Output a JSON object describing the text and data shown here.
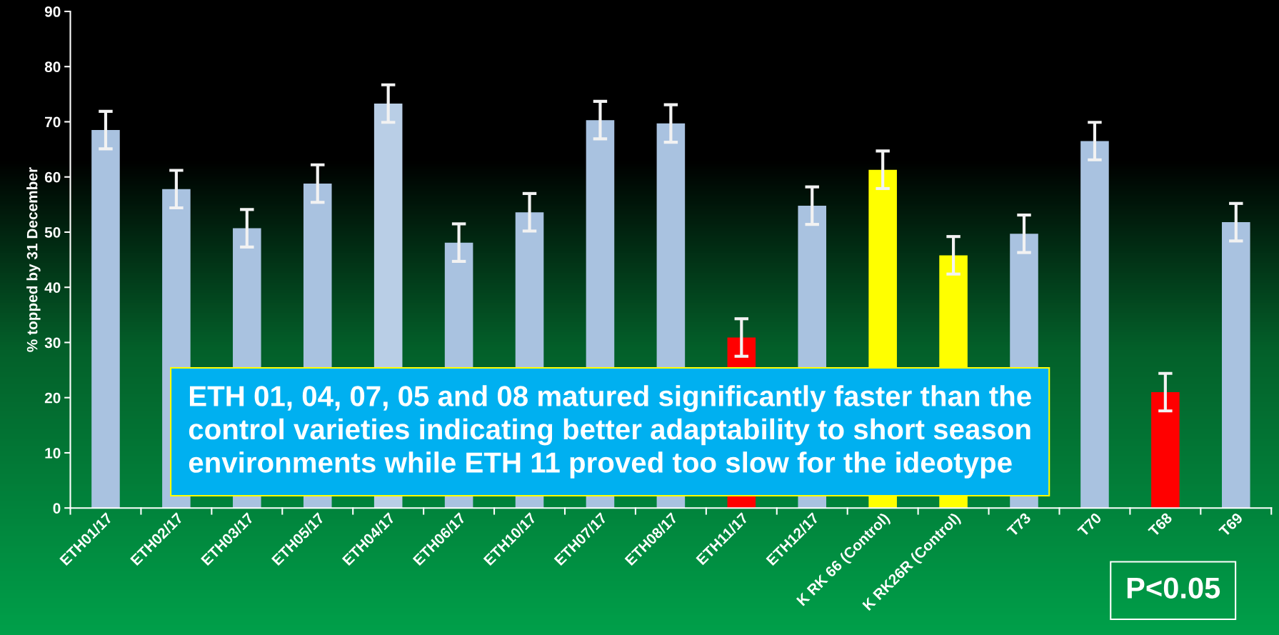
{
  "chart_data": {
    "type": "bar",
    "categories": [
      "ETH01/17",
      "ETH02/17",
      "ETH03/17",
      "ETH05/17",
      "ETH04/17",
      "ETH06/17",
      "ETH10/17",
      "ETH07/17",
      "ETH08/17",
      "ETH11/17",
      "ETH12/17",
      "K RK 66 (Control)",
      "K RK26R (Control)",
      "T73",
      "T70",
      "T68",
      "T69"
    ],
    "values": [
      68.5,
      57.8,
      50.7,
      58.8,
      73.3,
      48.1,
      53.6,
      70.3,
      69.7,
      30.9,
      54.8,
      61.3,
      45.8,
      49.7,
      66.5,
      21.0,
      51.8
    ],
    "colors": [
      "#a9c2e0",
      "#a9c2e0",
      "#a9c2e0",
      "#a9c2e0",
      "#b9cee6",
      "#a9c2e0",
      "#a9c2e0",
      "#a9c2e0",
      "#a9c2e0",
      "#ff0000",
      "#a9c2e0",
      "#ffff00",
      "#ffff00",
      "#a9c2e0",
      "#a9c2e0",
      "#ff0000",
      "#a9c2e0"
    ],
    "errors": [
      3.4,
      3.4,
      3.4,
      3.4,
      3.4,
      3.4,
      3.4,
      3.4,
      3.4,
      3.4,
      3.4,
      3.4,
      3.4,
      3.4,
      3.4,
      3.4,
      3.4
    ],
    "ylabel": "% topped by 31 December",
    "ylim": [
      0,
      90
    ],
    "yticks": [
      0,
      10,
      20,
      30,
      40,
      50,
      60,
      70,
      80,
      90
    ],
    "grid": false,
    "annotations": [
      "ETH 01, 04, 07, 05 and 08 matured significantly faster than the\ncontrol varieties indicating better adaptability to short season\nenvironments while ETH 11 proved too slow for the ideotype",
      "P<0.05"
    ]
  }
}
